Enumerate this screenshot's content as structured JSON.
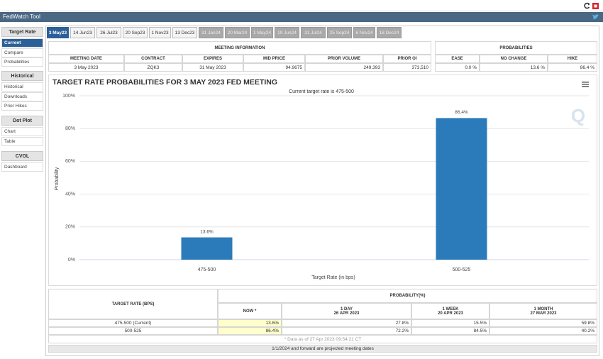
{
  "header": {
    "title": "FedWatch Tool"
  },
  "sidebar": [
    {
      "heading": "Target Rate",
      "items": [
        "Current",
        "Compare",
        "Probabilities"
      ]
    },
    {
      "heading": "Historical",
      "items": [
        "Historical",
        "Downloads",
        "Prior Hikes"
      ]
    },
    {
      "heading": "Dot Plot",
      "items": [
        "Chart",
        "Table"
      ]
    },
    {
      "heading": "CVOL",
      "items": [
        "Dashboard"
      ]
    }
  ],
  "tabs": [
    {
      "label": "3 May23",
      "selected": true
    },
    {
      "label": "14 Jun23"
    },
    {
      "label": "26 Jul23"
    },
    {
      "label": "20 Sep23"
    },
    {
      "label": "1 Nov23"
    },
    {
      "label": "13 Dec23"
    },
    {
      "label": "31 Jan24",
      "projected": true
    },
    {
      "label": "20 Mar24",
      "projected": true
    },
    {
      "label": "1 May24",
      "projected": true
    },
    {
      "label": "19 Jun24",
      "projected": true
    },
    {
      "label": "31 Jul24",
      "projected": true
    },
    {
      "label": "25 Sep24",
      "projected": true
    },
    {
      "label": "6 Nov24",
      "projected": true
    },
    {
      "label": "18 Dec24",
      "projected": true
    }
  ],
  "meeting_info": {
    "title": "MEETING INFORMATION",
    "columns": [
      "MEETING DATE",
      "CONTRACT",
      "EXPIRES",
      "MID PRICE",
      "PRIOR VOLUME",
      "PRIOR OI"
    ],
    "row": [
      "3 May 2023",
      "ZQK3",
      "31 May 2023",
      "94.9675",
      "249,393",
      "373,510"
    ]
  },
  "probabilities": {
    "title": "PROBABILITIES",
    "columns": [
      "EASE",
      "NO CHANGE",
      "HIKE"
    ],
    "row": [
      "0.0 %",
      "13.6 %",
      "86.4 %"
    ]
  },
  "chart_data": {
    "type": "bar",
    "title": "TARGET RATE PROBABILITIES FOR 3 MAY 2023 FED MEETING",
    "subtitle": "Current target rate is 475-500",
    "x_label": "Target Rate (in bps)",
    "y_label": "Probability",
    "categories": [
      "475-500",
      "500-525"
    ],
    "values": [
      13.6,
      86.4
    ],
    "value_labels": [
      "13.6%",
      "86.4%"
    ],
    "color": "#2b7bba",
    "ylim": [
      0,
      100
    ],
    "yticks": [
      {
        "value": 0,
        "label": "0%"
      },
      {
        "value": 20,
        "label": "20%"
      },
      {
        "value": 40,
        "label": "40%"
      },
      {
        "value": 60,
        "label": "60%"
      },
      {
        "value": 80,
        "label": "80%"
      },
      {
        "value": 100,
        "label": "100%"
      }
    ],
    "grid": true
  },
  "prob_table": {
    "row_header": "TARGET RATE (BPS)",
    "title": "PROBABILITY(%)",
    "columns": [
      {
        "label": "NOW *"
      },
      {
        "label": "1 DAY",
        "date": "26 APR 2023"
      },
      {
        "label": "1 WEEK",
        "date": "20 APR 2023"
      },
      {
        "label": "1 MONTH",
        "date": "27 MAR 2023"
      }
    ],
    "rows": [
      [
        "475-500 (Current)",
        "13.6%",
        "27.8%",
        "15.5%",
        "59.8%"
      ],
      [
        "500-525",
        "86.4%",
        "72.2%",
        "84.5%",
        "40.2%"
      ]
    ],
    "note": "* Data as of 27 Apr 2023 09:54:21 CT"
  },
  "footer": "1/1/2024 and forward are projected meeting dates"
}
